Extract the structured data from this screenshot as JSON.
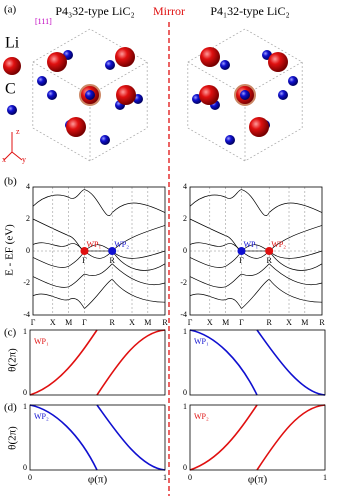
{
  "panel_a": {
    "label": "(a)",
    "left_title": "P4₃32-type LiC₂",
    "right_title": "P4₁32-type LiC₂",
    "mirror": "Mirror",
    "direction": "[111]",
    "legend": [
      "Li",
      "C"
    ],
    "axes": [
      "z",
      "x",
      "y"
    ]
  },
  "panel_b": {
    "label": "(b)",
    "y_label": "E - EF (eV)",
    "y_ticks": [
      "4",
      "2",
      "0",
      "-2",
      "-4"
    ],
    "k_path": [
      "Γ",
      "X",
      "M",
      "Γ",
      "R",
      "X",
      "M",
      "R"
    ],
    "left_points": [
      "WP₁",
      "WP₂"
    ],
    "right_points": [
      "WP₁",
      "WP₂"
    ],
    "point_k": [
      "Γ",
      "R"
    ]
  },
  "panel_c": {
    "label": "(c)",
    "left_wp": "WP₁",
    "right_wp": "WP₁",
    "y_label": "θ(2π)",
    "y_ticks": [
      "1",
      "0"
    ]
  },
  "panel_d": {
    "label": "(d)",
    "left_wp": "WP₂",
    "right_wp": "WP₂",
    "y_label": "θ(2π)",
    "y_ticks": [
      "1",
      "0"
    ],
    "x_label": "φ(π)",
    "x_ticks": [
      "0",
      "1"
    ]
  }
}
